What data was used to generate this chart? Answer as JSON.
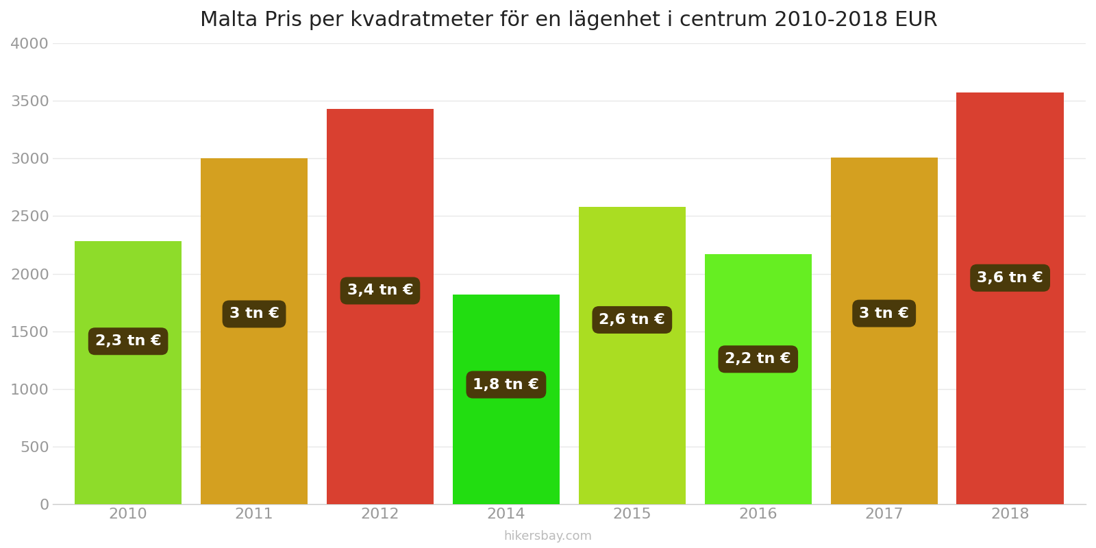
{
  "title": "Malta Pris per kvadratmeter för en lägenhet i centrum 2010-2018 EUR",
  "years": [
    2010,
    2011,
    2012,
    2014,
    2015,
    2016,
    2017,
    2018
  ],
  "values": [
    2280,
    3000,
    3430,
    1820,
    2580,
    2170,
    3010,
    3570
  ],
  "bar_colors": [
    "#8edc2a",
    "#d4a020",
    "#d94030",
    "#22dd11",
    "#aadd22",
    "#66ee22",
    "#d4a020",
    "#d94030"
  ],
  "labels": [
    "2,3 tn €",
    "3 tn €",
    "3,4 tn €",
    "1,8 tn €",
    "2,6 tn €",
    "2,2 tn €",
    "3 tn €",
    "3,6 tn €"
  ],
  "label_y_fractions": [
    0.62,
    0.55,
    0.54,
    0.57,
    0.62,
    0.58,
    0.55,
    0.55
  ],
  "ylim": [
    0,
    4000
  ],
  "yticks": [
    0,
    500,
    1000,
    1500,
    2000,
    2500,
    3000,
    3500,
    4000
  ],
  "bg_color": "#ffffff",
  "grid_color": "#e8e8e8",
  "label_bg_color": "#4a3a0a",
  "label_text_color": "#ffffff",
  "title_fontsize": 22,
  "tick_fontsize": 16,
  "label_fontsize": 16,
  "bar_width": 0.85,
  "watermark": "hikersbay.com"
}
